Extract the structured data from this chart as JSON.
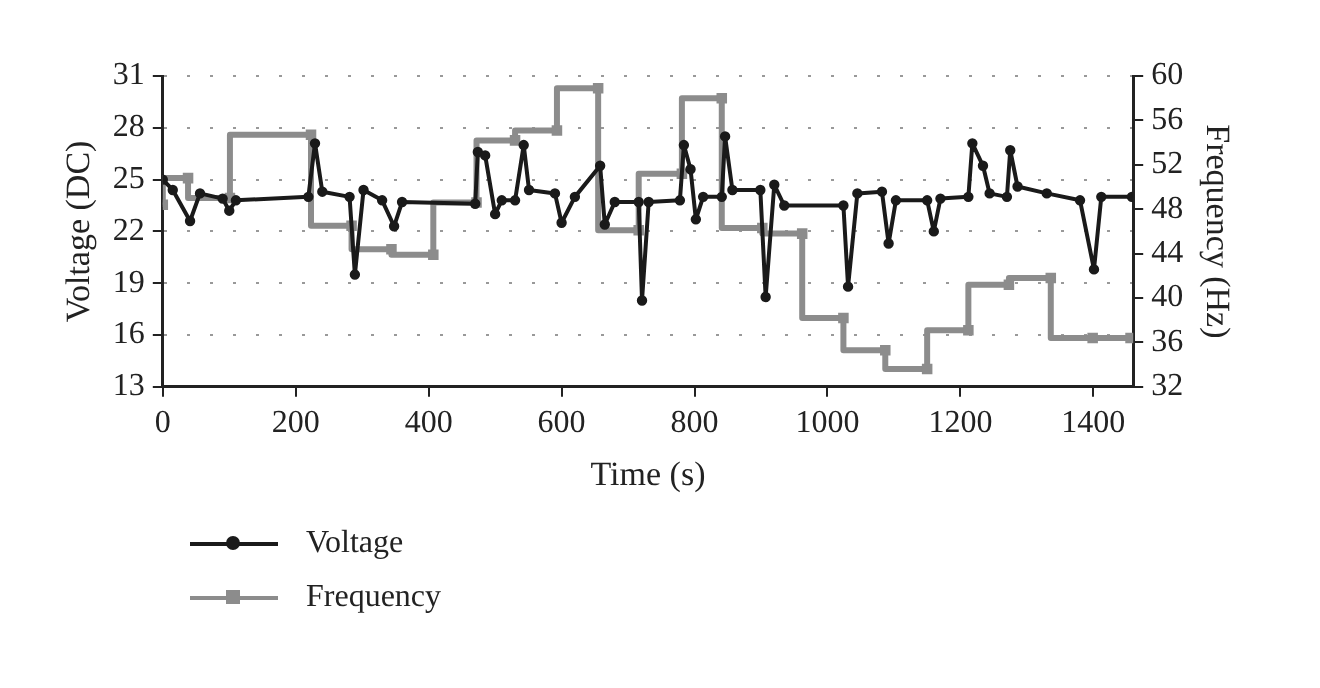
{
  "chart_data": {
    "type": "line",
    "xlabel": "Time (s)",
    "ylabel": "Voltage (DC)",
    "y2label": "Frequency (Hz)",
    "xlim": [
      0,
      1460
    ],
    "xticks": [
      0,
      200,
      400,
      600,
      800,
      1000,
      1200,
      1400
    ],
    "ylim": [
      13,
      31
    ],
    "yticks": [
      13,
      16,
      19,
      22,
      25,
      28,
      31
    ],
    "y2lim": [
      32,
      60
    ],
    "y2ticks": [
      32,
      36,
      40,
      44,
      48,
      52,
      56,
      60
    ],
    "grid": "y",
    "legend": "bottom left",
    "series": [
      {
        "name": "Voltage",
        "color": "#1a1a1a",
        "marker": "circle",
        "x": [
          0,
          15,
          41,
          56,
          90,
          100,
          110,
          219,
          229,
          240,
          281,
          289,
          302,
          330,
          348,
          360,
          470,
          474,
          485,
          500,
          510,
          530,
          543,
          551,
          590,
          600,
          620,
          658,
          665,
          680,
          716,
          721,
          731,
          778,
          784,
          794,
          802,
          813,
          841,
          846,
          857,
          899,
          907,
          920,
          935,
          1024,
          1031,
          1045,
          1082,
          1092,
          1103,
          1150,
          1160,
          1170,
          1212,
          1218,
          1234,
          1244,
          1270,
          1275,
          1286,
          1330,
          1380,
          1401,
          1412,
          1458
        ],
        "values": [
          25.0,
          24.4,
          22.6,
          24.2,
          23.9,
          23.2,
          23.8,
          24.0,
          27.1,
          24.3,
          24.0,
          19.5,
          24.4,
          23.8,
          22.3,
          23.7,
          23.6,
          26.6,
          26.4,
          23.0,
          23.8,
          23.8,
          27.0,
          24.4,
          24.2,
          22.5,
          24.0,
          25.8,
          22.4,
          23.7,
          23.7,
          18.0,
          23.7,
          23.8,
          27.0,
          25.6,
          22.7,
          24.0,
          24.0,
          27.5,
          24.4,
          24.4,
          18.2,
          24.7,
          23.5,
          23.5,
          18.8,
          24.2,
          24.3,
          21.3,
          23.8,
          23.8,
          22.0,
          23.9,
          24.0,
          27.1,
          25.8,
          24.2,
          24.0,
          26.7,
          24.6,
          24.2,
          23.8,
          19.8,
          24.0,
          24.0
        ]
      },
      {
        "name": "Frequency",
        "type": "step",
        "axis": "y2",
        "color": "#8c8c8c",
        "marker": "square",
        "x": [
          0,
          38,
          101,
          223,
          284,
          344,
          407,
          472,
          530,
          593,
          655,
          716,
          781,
          841,
          902,
          962,
          1024,
          1087,
          1150,
          1212,
          1273,
          1336,
          1399,
          1456
        ],
        "values": [
          48.4,
          50.8,
          49.0,
          54.7,
          46.5,
          44.4,
          43.9,
          48.6,
          54.2,
          55.1,
          58.9,
          46.1,
          51.2,
          58.0,
          46.3,
          45.8,
          38.2,
          35.3,
          33.6,
          37.1,
          41.2,
          41.8,
          36.4,
          36.4
        ]
      }
    ]
  }
}
